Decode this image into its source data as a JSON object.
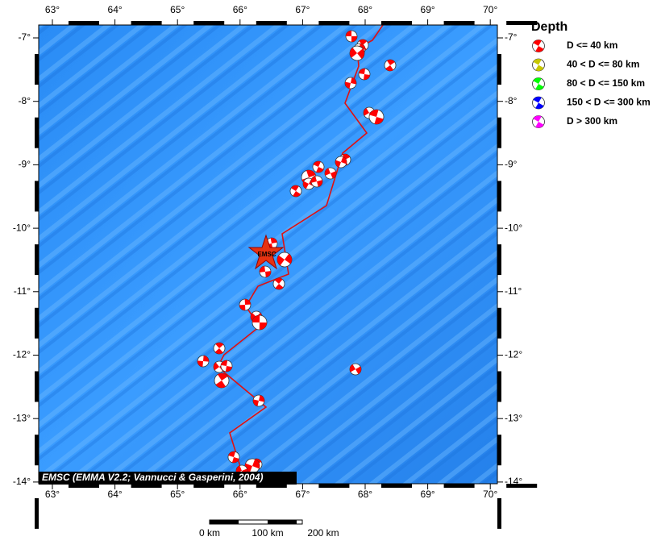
{
  "map": {
    "lon_labels": [
      "63°",
      "64°",
      "65°",
      "66°",
      "67°",
      "68°",
      "69°",
      "70°"
    ],
    "lat_labels": [
      "-7°",
      "-8°",
      "-9°",
      "-10°",
      "-11°",
      "-12°",
      "-13°",
      "-14°"
    ],
    "epicenter_label": "EMSC",
    "attribution": "EMSC (EMMA V2.2; Vannucci & Gasperini, 2004)",
    "scale_labels": [
      "0 km",
      "100 km",
      "200 km"
    ]
  },
  "legend": {
    "title": "Depth",
    "entries": [
      {
        "label": "D <= 40 km",
        "color": "#ff0000"
      },
      {
        "label": "40 < D <= 80 km",
        "color": "#c8c800"
      },
      {
        "label": "80 < D <= 150 km",
        "color": "#00ff00"
      },
      {
        "label": "150 < D <= 300 km",
        "color": "#0000ff"
      },
      {
        "label": "D > 300 km",
        "color": "#ff00ff"
      }
    ]
  }
}
